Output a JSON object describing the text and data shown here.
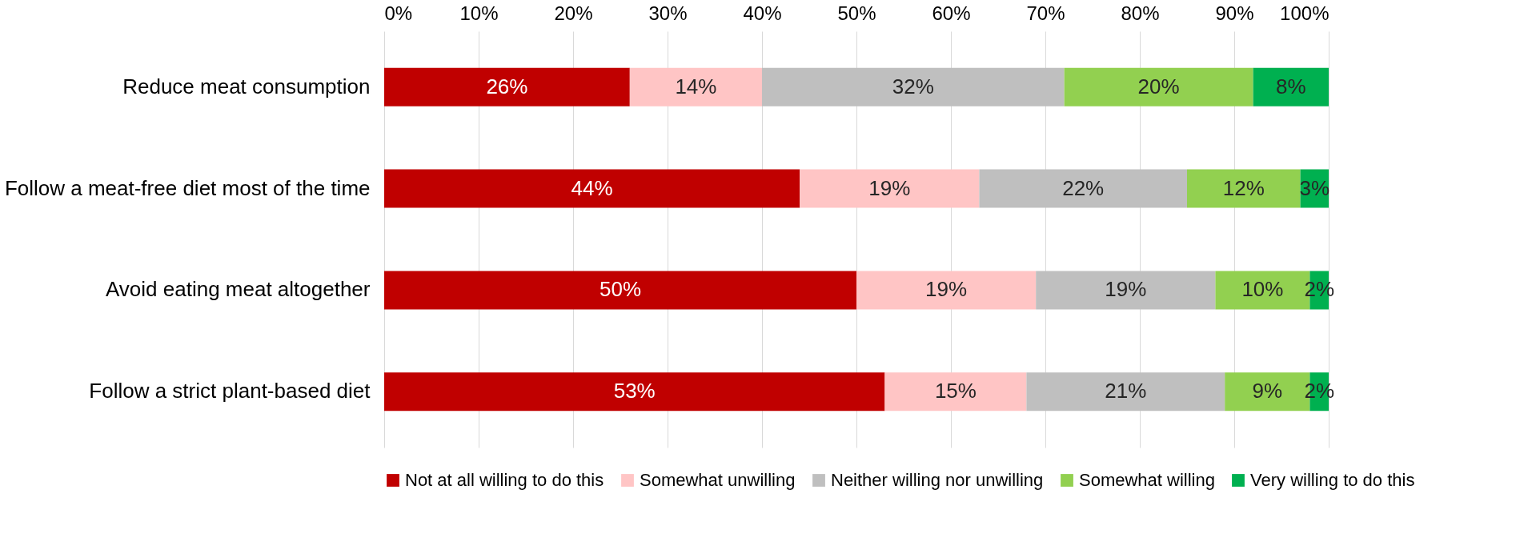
{
  "chart_data": {
    "type": "bar",
    "orientation": "horizontal",
    "stacked": true,
    "categories": [
      "Reduce meat consumption",
      "Follow a meat-free diet most of the time",
      "Avoid eating meat altogether",
      "Follow a strict plant-based diet"
    ],
    "series": [
      {
        "name": "Not at all willing to do this",
        "color": "#c00000",
        "values": [
          26,
          44,
          50,
          53
        ],
        "value_labels": [
          "26%",
          "44%",
          "50%",
          "53%"
        ]
      },
      {
        "name": "Somewhat unwilling",
        "color": "#ffc5c5",
        "values": [
          14,
          19,
          19,
          15
        ],
        "value_labels": [
          "14%",
          "19%",
          "19%",
          "15%"
        ]
      },
      {
        "name": "Neither willing nor unwilling",
        "color": "#bfbfbf",
        "values": [
          32,
          22,
          19,
          21
        ],
        "value_labels": [
          "32%",
          "22%",
          "19%",
          "21%"
        ]
      },
      {
        "name": "Somewhat willing",
        "color": "#92d050",
        "values": [
          20,
          12,
          10,
          9
        ],
        "value_labels": [
          "20%",
          "12%",
          "10%",
          "9%"
        ]
      },
      {
        "name": "Very willing to do this",
        "color": "#00b050",
        "values": [
          8,
          3,
          2,
          2
        ],
        "value_labels": [
          "8%",
          "3%",
          "2%",
          "2%"
        ]
      }
    ],
    "xlim": [
      0,
      100
    ],
    "xticks": [
      {
        "value": 0,
        "label": "0%"
      },
      {
        "value": 10,
        "label": "10%"
      },
      {
        "value": 20,
        "label": "20%"
      },
      {
        "value": 30,
        "label": "30%"
      },
      {
        "value": 40,
        "label": "40%"
      },
      {
        "value": 50,
        "label": "50%"
      },
      {
        "value": 60,
        "label": "60%"
      },
      {
        "value": 70,
        "label": "70%"
      },
      {
        "value": 80,
        "label": "80%"
      },
      {
        "value": 90,
        "label": "90%"
      },
      {
        "value": 100,
        "label": "100%"
      }
    ],
    "grid": "x",
    "legend": "bottom"
  }
}
